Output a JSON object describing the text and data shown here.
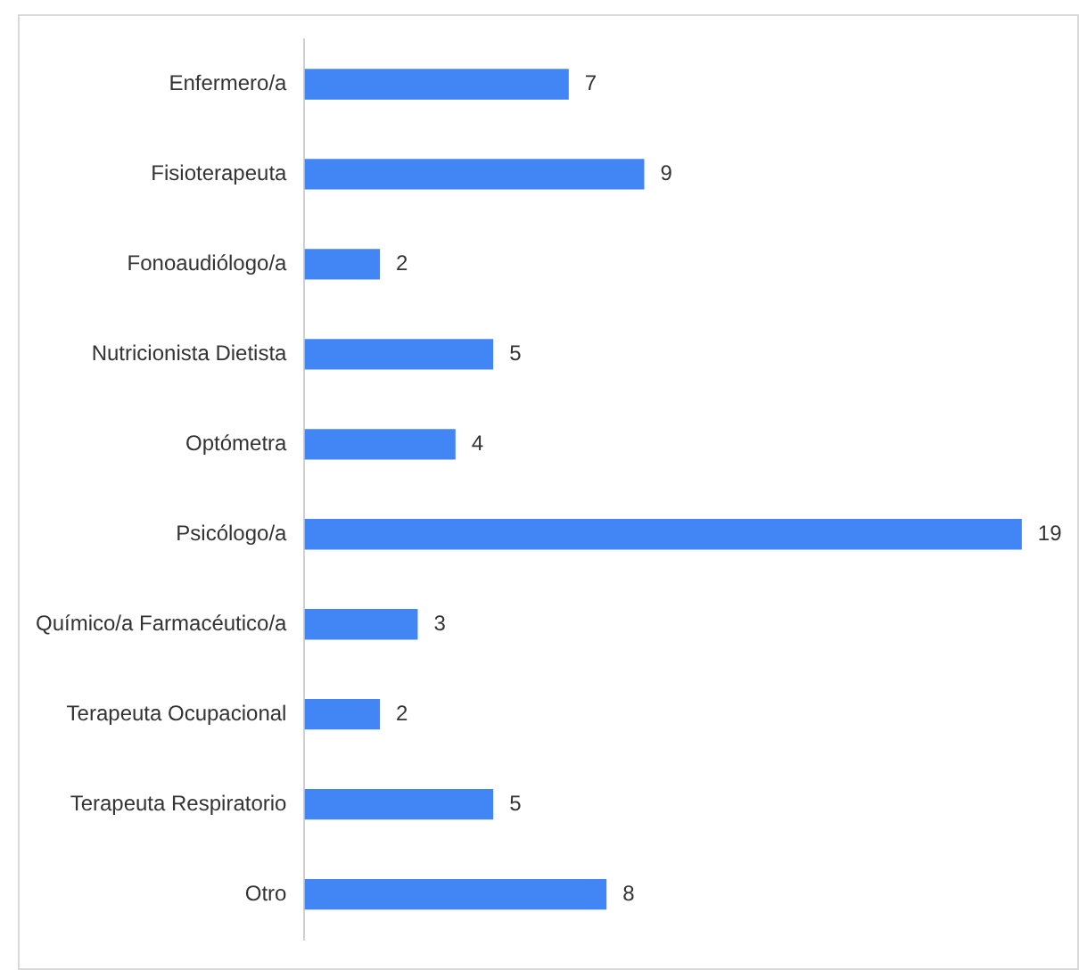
{
  "chart_data": {
    "type": "bar",
    "orientation": "horizontal",
    "categories": [
      "Enfermero/a",
      "Fisioterapeuta",
      "Fonoaudiólogo/a",
      "Nutricionista Dietista",
      "Optómetra",
      "Psicólogo/a",
      "Químico/a Farmacéutico/a",
      "Terapeuta Ocupacional",
      "Terapeuta Respiratorio",
      "Otro"
    ],
    "values": [
      7,
      9,
      2,
      5,
      4,
      19,
      3,
      2,
      5,
      8
    ],
    "color": "#4285f4",
    "data_labels": true,
    "tick_labels": "y"
  }
}
